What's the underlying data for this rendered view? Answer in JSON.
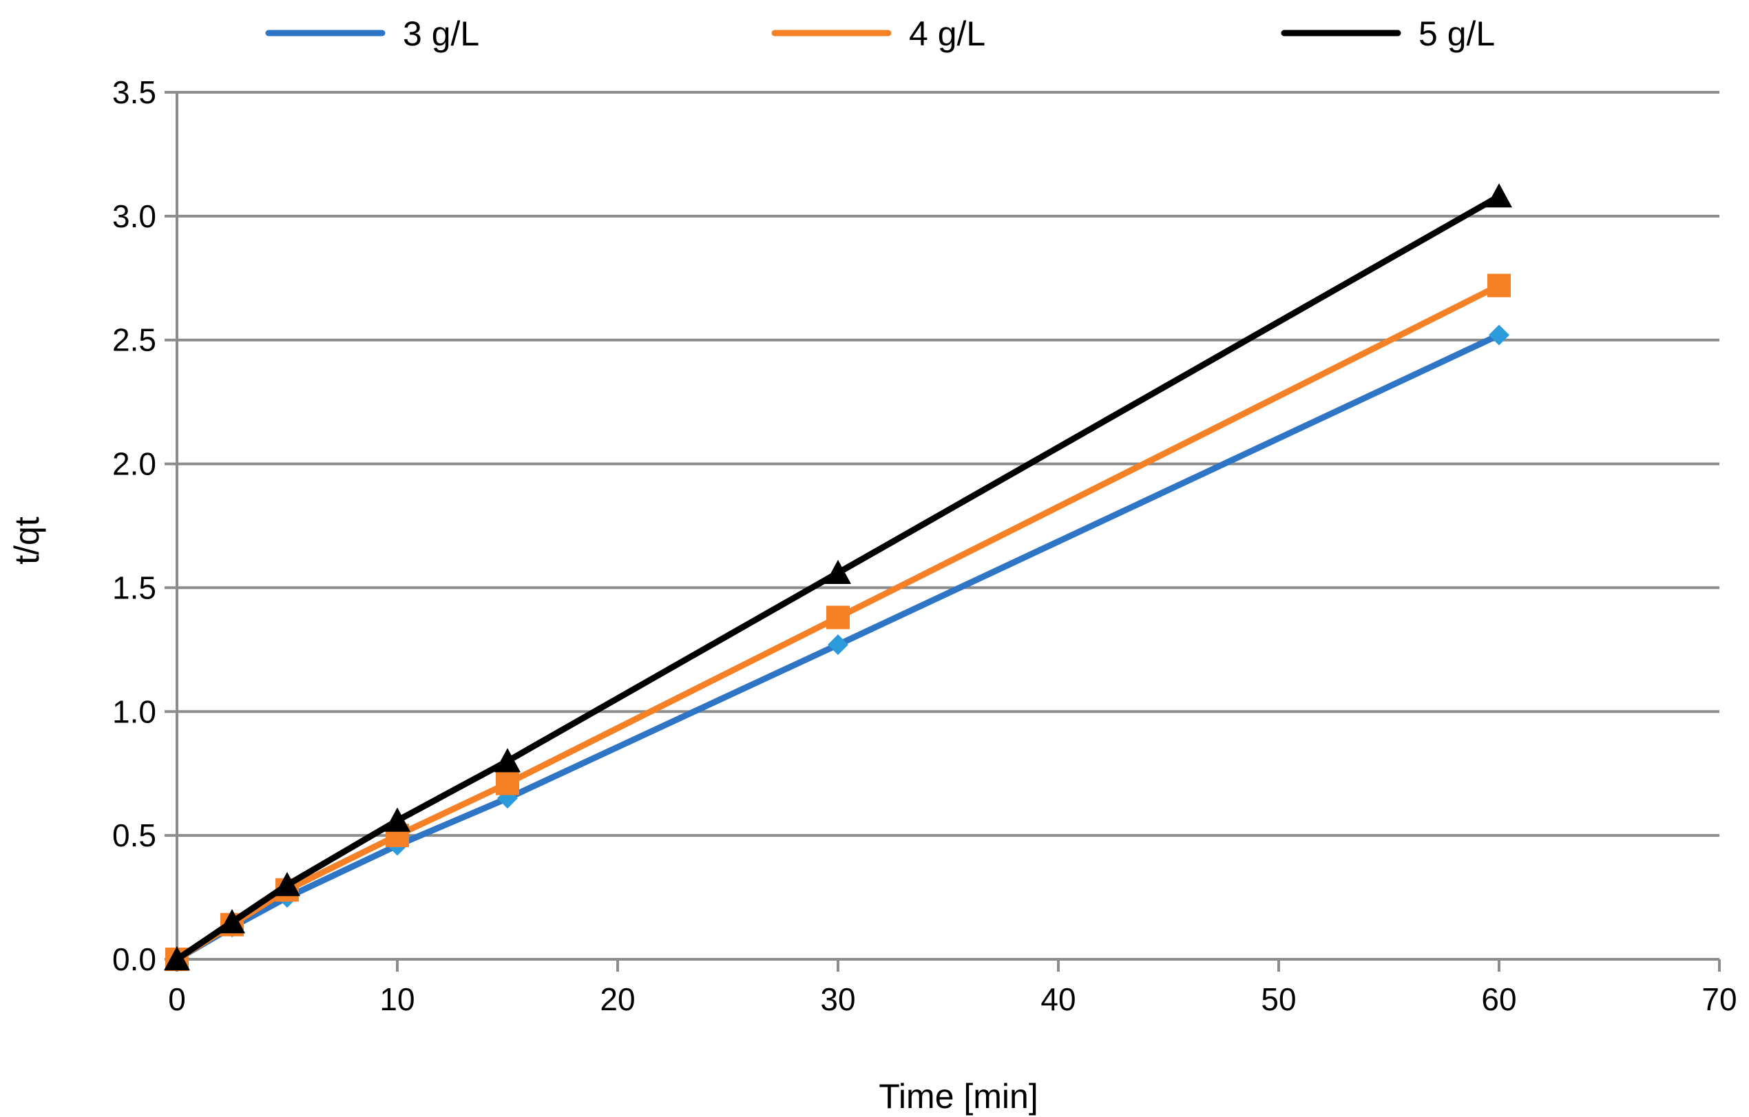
{
  "chart_data": {
    "type": "line",
    "title": "",
    "xlabel": "Time [min]",
    "ylabel": "t/qt",
    "xlim": [
      0,
      70
    ],
    "ylim": [
      0,
      3.5
    ],
    "x_ticks": [
      0,
      10,
      20,
      30,
      40,
      50,
      60,
      70
    ],
    "y_ticks": [
      0.0,
      0.5,
      1.0,
      1.5,
      2.0,
      2.5,
      3.0,
      3.5
    ],
    "x_tick_labels": [
      "0",
      "10",
      "20",
      "30",
      "40",
      "50",
      "60",
      "70"
    ],
    "y_tick_labels": [
      "0.0",
      "0.5",
      "1.0",
      "1.5",
      "2.0",
      "2.5",
      "3.0",
      "3.5"
    ],
    "grid": "horizontal",
    "legend_position": "top",
    "x": [
      0,
      2.5,
      5,
      10,
      15,
      30,
      60
    ],
    "series": [
      {
        "name": "3 g/L",
        "color": "#2E75C6",
        "marker_color": "#2C9BDC",
        "marker": "diamond",
        "values": [
          0.0,
          0.13,
          0.25,
          0.46,
          0.65,
          1.27,
          2.52
        ]
      },
      {
        "name": "4 g/L",
        "color": "#F58025",
        "marker_color": "#F58025",
        "marker": "square",
        "values": [
          0.0,
          0.14,
          0.28,
          0.5,
          0.71,
          1.38,
          2.72
        ]
      },
      {
        "name": "5 g/L",
        "color": "#000000",
        "marker_color": "#000000",
        "marker": "triangle",
        "values": [
          0.0,
          0.15,
          0.3,
          0.56,
          0.8,
          1.56,
          3.08
        ]
      }
    ]
  }
}
